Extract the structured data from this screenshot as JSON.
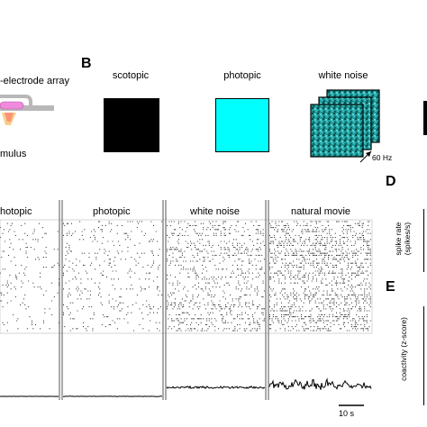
{
  "panel_letters": {
    "b": "B",
    "d": "D",
    "e": "E"
  },
  "panel_a": {
    "array_label": "-electrode array",
    "stimulus_label": "mulus"
  },
  "panel_b": {
    "stimuli": [
      {
        "label": "scotopic",
        "color": "#000000"
      },
      {
        "label": "photopic",
        "color": "#00ffff"
      },
      {
        "label": "white noise",
        "color": "#1f9a9a"
      }
    ],
    "frame_rate_label": "60 Hz"
  },
  "panel_c": {
    "segments": [
      "hotopic",
      "photopic",
      "white noise",
      "natural movie"
    ],
    "scale_bar_label": "10 s"
  },
  "panel_d": {
    "ylabel_line1": "spike rate",
    "ylabel_line2": "(spikes/s)"
  },
  "panel_e": {
    "ylabel": "coactivity (z-score)"
  }
}
